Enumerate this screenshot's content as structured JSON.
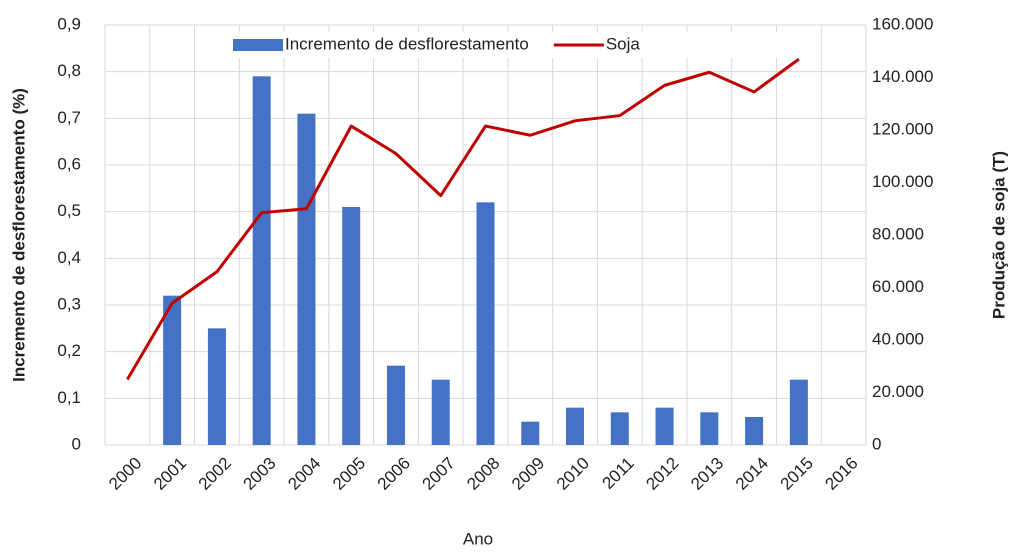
{
  "chart_data": {
    "type": "bar_line",
    "x_label": "Ano",
    "y_label": "Incremento de desflorestamento (%)",
    "y2_label": "Produção de soja (T)",
    "categories": [
      "2000",
      "2001",
      "2002",
      "2003",
      "2004",
      "2005",
      "2006",
      "2007",
      "2008",
      "2009",
      "2010",
      "2011",
      "2012",
      "2013",
      "2014",
      "2015",
      "2016"
    ],
    "series": [
      {
        "name": "Incremento de desflorestamento",
        "type": "bar",
        "color": "#4472c4",
        "values": [
          null,
          0.32,
          0.25,
          0.79,
          0.71,
          0.51,
          0.17,
          0.14,
          0.52,
          0.05,
          0.08,
          0.07,
          0.08,
          0.07,
          0.06,
          0.14,
          null
        ]
      },
      {
        "name": "Soja",
        "type": "line",
        "axis": "y2",
        "color": "#c00000",
        "values": [
          25000,
          54000,
          66000,
          88500,
          90000,
          121500,
          111000,
          95000,
          121500,
          118000,
          123500,
          125500,
          137000,
          142000,
          134500,
          147000,
          null
        ]
      }
    ],
    "ylim": [
      0,
      0.9
    ],
    "yticks": [
      0,
      {
        "value": 0.1,
        "label": "0,1"
      },
      {
        "value": 0.2,
        "label": "0,2"
      },
      {
        "value": 0.3,
        "label": "0,3"
      },
      {
        "value": 0.4,
        "label": "0,4"
      },
      {
        "value": 0.5,
        "label": "0,5"
      },
      {
        "value": 0.6,
        "label": "0,6"
      },
      {
        "value": 0.7,
        "label": "0,7"
      },
      {
        "value": 0.8,
        "label": "0,8"
      },
      {
        "value": 0.9,
        "label": "0,9"
      }
    ],
    "y2lim": [
      0,
      160000
    ],
    "y2ticks": [
      0,
      {
        "value": 20000,
        "label": "20.000"
      },
      {
        "value": 40000,
        "label": "40.000"
      },
      {
        "value": 60000,
        "label": "60.000"
      },
      {
        "value": 80000,
        "label": "80.000"
      },
      {
        "value": 100000,
        "label": "100.000"
      },
      {
        "value": 120000,
        "label": "120.000"
      },
      {
        "value": 140000,
        "label": "140.000"
      },
      {
        "value": 160000,
        "label": "160.000"
      }
    ],
    "grid": true,
    "legend": "top"
  }
}
